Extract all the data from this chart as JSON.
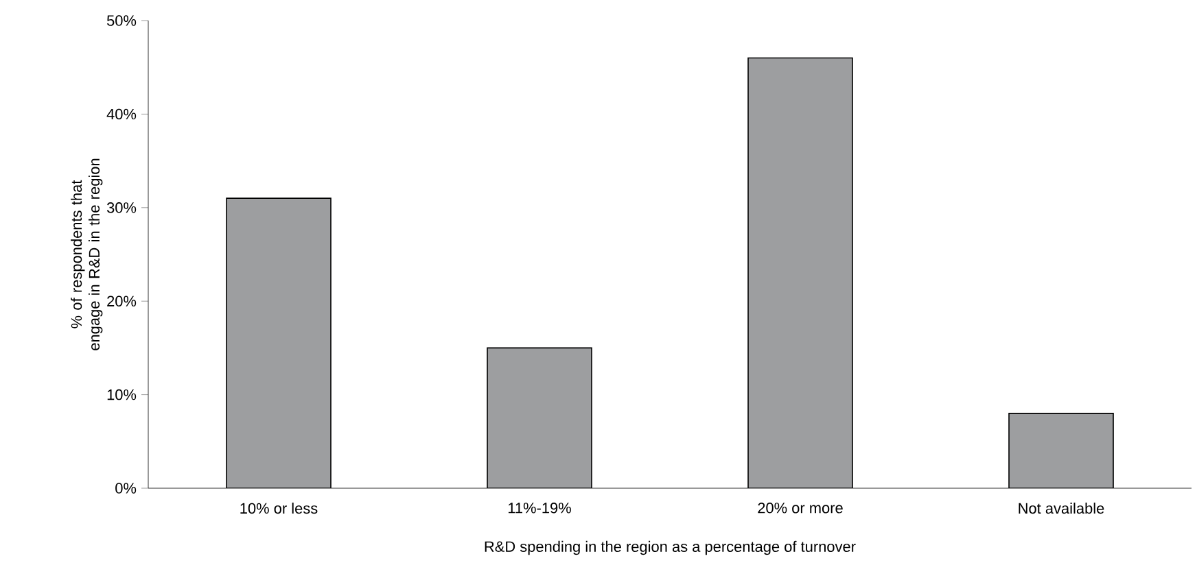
{
  "chart_data": {
    "type": "bar",
    "xlabel": "R&D spending in the region as a percentage of turnover",
    "ylabel": "%  of respondents that engage in R&D in the region",
    "categories": [
      "10% or less",
      "11%-19%",
      "20% or more",
      "Not available"
    ],
    "values": [
      31,
      15,
      46,
      8
    ],
    "color": "#9d9ea0",
    "ylim": [
      0,
      50
    ],
    "yticks": [
      {
        "value": 0,
        "label": "0%"
      },
      {
        "value": 10,
        "label": "10%"
      },
      {
        "value": 20,
        "label": "20%"
      },
      {
        "value": 30,
        "label": "30%"
      },
      {
        "value": 40,
        "label": "40%"
      },
      {
        "value": 50,
        "label": "50%"
      }
    ],
    "grid": false
  }
}
